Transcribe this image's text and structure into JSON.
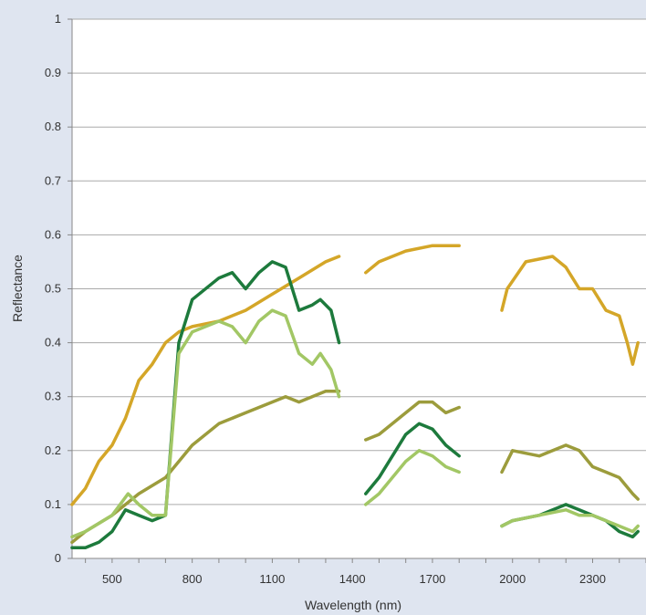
{
  "chart_data": {
    "type": "line",
    "title": "",
    "xlabel": "Wavelength (nm)",
    "ylabel": "Reflectance",
    "xlim": [
      350,
      2500
    ],
    "ylim": [
      0,
      1
    ],
    "xticks": [
      500,
      800,
      1100,
      1400,
      1700,
      2000,
      2300
    ],
    "yticks": [
      0,
      0.1,
      0.2,
      0.3,
      0.4,
      0.5,
      0.6,
      0.7,
      0.8,
      0.9,
      1
    ],
    "ytick_labels": [
      "0",
      "0.1",
      "0.2",
      "0.3",
      "0.4",
      "0.5",
      "0.6",
      "0.7",
      "0.8",
      "0.9",
      "1"
    ],
    "grid": "horizontal",
    "background": "#dfe5f0",
    "plot_background": "#ffffff",
    "grid_color": "#aaaaaa",
    "series": [
      {
        "color": "#d4a628",
        "segments": [
          [
            [
              350,
              0.1
            ],
            [
              400,
              0.13
            ],
            [
              450,
              0.18
            ],
            [
              500,
              0.21
            ],
            [
              550,
              0.26
            ],
            [
              600,
              0.33
            ],
            [
              650,
              0.36
            ],
            [
              700,
              0.4
            ],
            [
              750,
              0.42
            ],
            [
              800,
              0.43
            ],
            [
              900,
              0.44
            ],
            [
              1000,
              0.46
            ],
            [
              1100,
              0.49
            ],
            [
              1200,
              0.52
            ],
            [
              1300,
              0.55
            ],
            [
              1350,
              0.56
            ]
          ],
          [
            [
              1450,
              0.53
            ],
            [
              1500,
              0.55
            ],
            [
              1600,
              0.57
            ],
            [
              1700,
              0.58
            ],
            [
              1800,
              0.58
            ]
          ],
          [
            [
              1960,
              0.46
            ],
            [
              1980,
              0.5
            ],
            [
              2050,
              0.55
            ],
            [
              2150,
              0.56
            ],
            [
              2200,
              0.54
            ],
            [
              2250,
              0.5
            ],
            [
              2300,
              0.5
            ],
            [
              2350,
              0.46
            ],
            [
              2400,
              0.45
            ],
            [
              2430,
              0.4
            ],
            [
              2450,
              0.36
            ],
            [
              2470,
              0.4
            ]
          ]
        ]
      },
      {
        "color": "#9c9c3c",
        "segments": [
          [
            [
              350,
              0.03
            ],
            [
              400,
              0.05
            ],
            [
              500,
              0.08
            ],
            [
              600,
              0.12
            ],
            [
              700,
              0.15
            ],
            [
              800,
              0.21
            ],
            [
              900,
              0.25
            ],
            [
              1000,
              0.27
            ],
            [
              1100,
              0.29
            ],
            [
              1150,
              0.3
            ],
            [
              1200,
              0.29
            ],
            [
              1300,
              0.31
            ],
            [
              1350,
              0.31
            ]
          ],
          [
            [
              1450,
              0.22
            ],
            [
              1500,
              0.23
            ],
            [
              1600,
              0.27
            ],
            [
              1650,
              0.29
            ],
            [
              1700,
              0.29
            ],
            [
              1750,
              0.27
            ],
            [
              1800,
              0.28
            ]
          ],
          [
            [
              1960,
              0.16
            ],
            [
              2000,
              0.2
            ],
            [
              2100,
              0.19
            ],
            [
              2200,
              0.21
            ],
            [
              2250,
              0.2
            ],
            [
              2300,
              0.17
            ],
            [
              2350,
              0.16
            ],
            [
              2400,
              0.15
            ],
            [
              2450,
              0.12
            ],
            [
              2470,
              0.11
            ]
          ]
        ]
      },
      {
        "color": "#1d7a3c",
        "segments": [
          [
            [
              350,
              0.02
            ],
            [
              400,
              0.02
            ],
            [
              450,
              0.03
            ],
            [
              500,
              0.05
            ],
            [
              550,
              0.09
            ],
            [
              600,
              0.08
            ],
            [
              650,
              0.07
            ],
            [
              700,
              0.08
            ],
            [
              750,
              0.4
            ],
            [
              800,
              0.48
            ],
            [
              900,
              0.52
            ],
            [
              950,
              0.53
            ],
            [
              1000,
              0.5
            ],
            [
              1050,
              0.53
            ],
            [
              1100,
              0.55
            ],
            [
              1150,
              0.54
            ],
            [
              1200,
              0.46
            ],
            [
              1250,
              0.47
            ],
            [
              1280,
              0.48
            ],
            [
              1320,
              0.46
            ],
            [
              1350,
              0.4
            ]
          ],
          [
            [
              1450,
              0.12
            ],
            [
              1500,
              0.15
            ],
            [
              1600,
              0.23
            ],
            [
              1650,
              0.25
            ],
            [
              1700,
              0.24
            ],
            [
              1750,
              0.21
            ],
            [
              1800,
              0.19
            ]
          ],
          [
            [
              1960,
              0.06
            ],
            [
              2000,
              0.07
            ],
            [
              2100,
              0.08
            ],
            [
              2200,
              0.1
            ],
            [
              2250,
              0.09
            ],
            [
              2300,
              0.08
            ],
            [
              2350,
              0.07
            ],
            [
              2400,
              0.05
            ],
            [
              2450,
              0.04
            ],
            [
              2470,
              0.05
            ]
          ]
        ]
      },
      {
        "color": "#a2c765",
        "segments": [
          [
            [
              350,
              0.04
            ],
            [
              400,
              0.05
            ],
            [
              500,
              0.08
            ],
            [
              560,
              0.12
            ],
            [
              600,
              0.1
            ],
            [
              650,
              0.08
            ],
            [
              700,
              0.08
            ],
            [
              750,
              0.38
            ],
            [
              800,
              0.42
            ],
            [
              900,
              0.44
            ],
            [
              950,
              0.43
            ],
            [
              1000,
              0.4
            ],
            [
              1050,
              0.44
            ],
            [
              1100,
              0.46
            ],
            [
              1150,
              0.45
            ],
            [
              1200,
              0.38
            ],
            [
              1250,
              0.36
            ],
            [
              1280,
              0.38
            ],
            [
              1320,
              0.35
            ],
            [
              1350,
              0.3
            ]
          ],
          [
            [
              1450,
              0.1
            ],
            [
              1500,
              0.12
            ],
            [
              1600,
              0.18
            ],
            [
              1650,
              0.2
            ],
            [
              1700,
              0.19
            ],
            [
              1750,
              0.17
            ],
            [
              1800,
              0.16
            ]
          ],
          [
            [
              1960,
              0.06
            ],
            [
              2000,
              0.07
            ],
            [
              2100,
              0.08
            ],
            [
              2200,
              0.09
            ],
            [
              2250,
              0.08
            ],
            [
              2300,
              0.08
            ],
            [
              2350,
              0.07
            ],
            [
              2400,
              0.06
            ],
            [
              2450,
              0.05
            ],
            [
              2470,
              0.06
            ]
          ]
        ]
      }
    ]
  }
}
